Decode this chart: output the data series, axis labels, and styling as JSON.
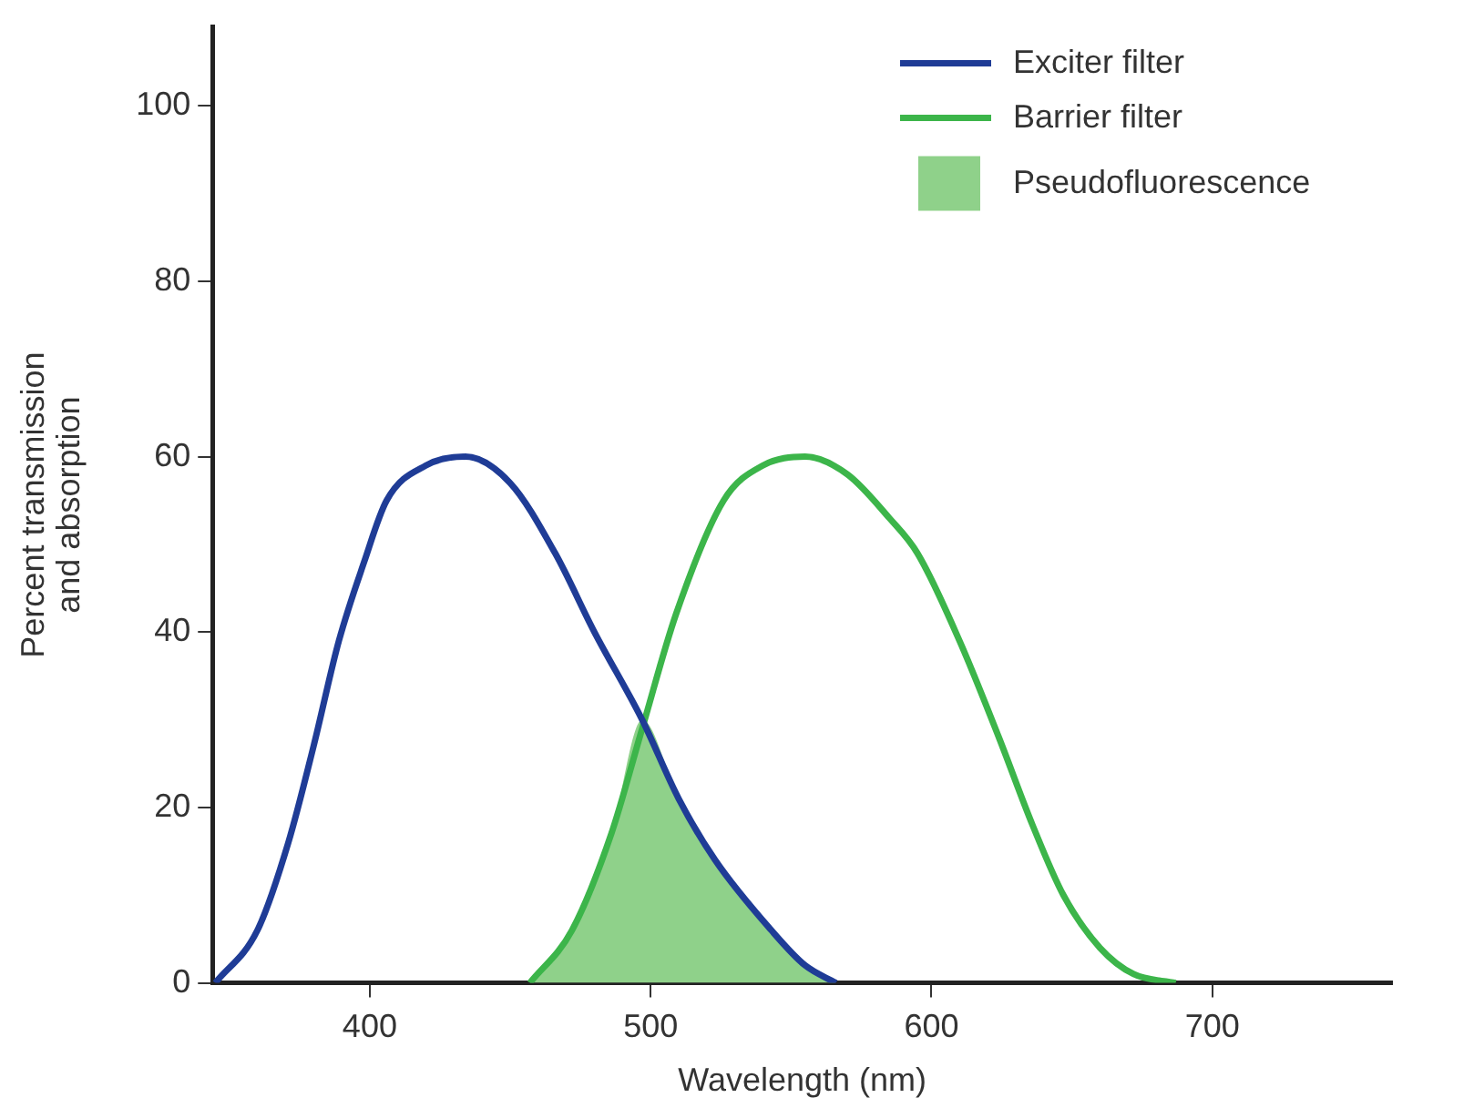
{
  "chart_data": {
    "type": "line",
    "xlabel": "Wavelength (nm)",
    "ylabel": "Percent transmission and absorption",
    "xlim": [
      344,
      764
    ],
    "xticks": [
      400,
      500,
      600,
      700
    ],
    "ylim": [
      0,
      109
    ],
    "yticks": [
      0,
      20,
      40,
      60,
      80,
      100
    ],
    "grid": false,
    "legend": "top right",
    "marker": "none",
    "line_style": "solid",
    "series": [
      {
        "name": "Exciter filter",
        "color": "#1f3c96",
        "x": [
          345,
          360,
          371,
          380,
          389,
          398,
          406,
          420,
          434,
          450,
          466,
          480,
          497,
          510,
          523,
          543,
          555,
          566
        ],
        "values": [
          0,
          6,
          16,
          27,
          39,
          48,
          55,
          59,
          60,
          57,
          49,
          40,
          30,
          21,
          14,
          6,
          2,
          0
        ]
      },
      {
        "name": "Barrier filter",
        "color": "#3cb54a",
        "x": [
          457,
          472,
          486,
          497,
          509,
          526,
          540,
          555,
          570,
          585,
          595,
          610,
          624,
          636,
          647,
          660,
          672,
          687
        ],
        "values": [
          0,
          6,
          17,
          29,
          42,
          55,
          59,
          60,
          58,
          53,
          49,
          39,
          28,
          18,
          10,
          4,
          1,
          0
        ]
      },
      {
        "name": "Pseudofluorescence",
        "color": "#8fd18a",
        "type": "area",
        "x": [
          457,
          472,
          486,
          497,
          510,
          523,
          543,
          555,
          566
        ],
        "values": [
          0,
          6,
          17,
          30,
          21,
          14,
          6,
          2,
          0
        ]
      }
    ]
  }
}
